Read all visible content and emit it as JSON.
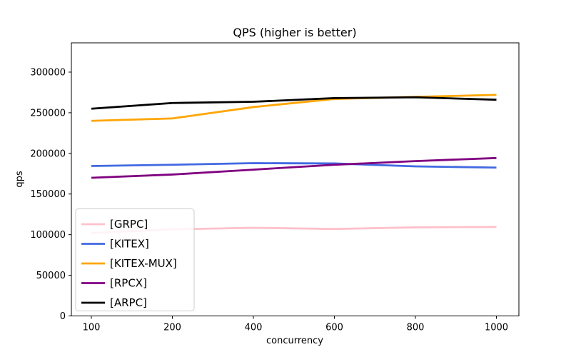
{
  "title": "QPS (higher is better)",
  "chart_data": {
    "type": "line",
    "title": "QPS (higher is better)",
    "xlabel": "concurrency",
    "ylabel": "qps",
    "categories": [
      100,
      200,
      400,
      600,
      800,
      1000
    ],
    "x_scale": "categorical-equal-spacing",
    "yticks": [
      0,
      50000,
      100000,
      150000,
      200000,
      250000,
      300000
    ],
    "ylim": [
      0,
      336000
    ],
    "grid": false,
    "legend_position": "lower-left",
    "legend_border_color": "#cccccc",
    "legend_bg_color": "rgba(255,255,255,0.8)",
    "axes_color": "#000000",
    "series": [
      {
        "name": "[GRPC]",
        "color": "#ffc0cb",
        "values": [
          102000,
          106500,
          108500,
          107000,
          109000,
          109500
        ]
      },
      {
        "name": "[KITEX]",
        "color": "#4169e1",
        "values": [
          184500,
          186000,
          188000,
          187600,
          184000,
          182500
        ]
      },
      {
        "name": "[KITEX-MUX]",
        "color": "#ffa500",
        "values": [
          240000,
          243000,
          257000,
          267000,
          269500,
          272000
        ]
      },
      {
        "name": "[RPCX]",
        "color": "#800080",
        "values": [
          170000,
          174000,
          180000,
          186000,
          190500,
          194300
        ]
      },
      {
        "name": "[ARPC]",
        "color": "#000000",
        "values": [
          255000,
          262000,
          263500,
          268000,
          269000,
          266000
        ]
      }
    ]
  }
}
